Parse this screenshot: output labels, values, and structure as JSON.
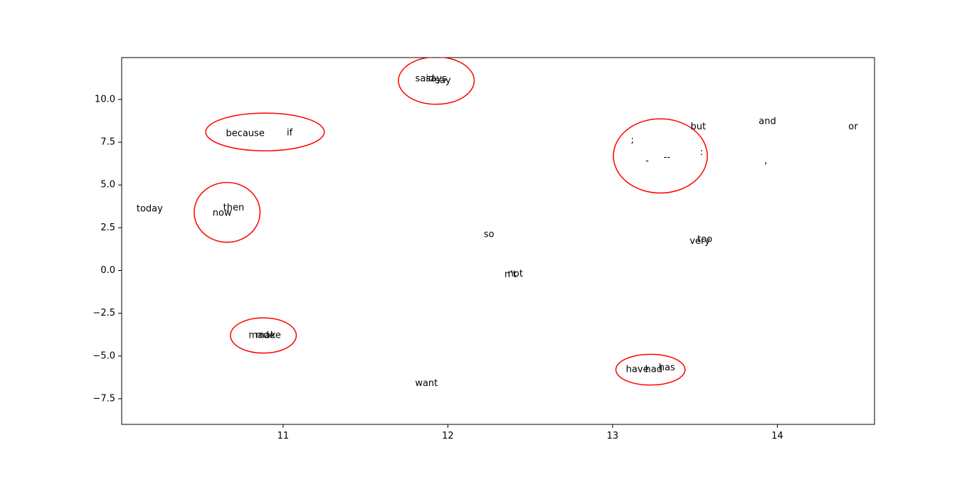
{
  "chart_data": {
    "type": "scatter",
    "title": "",
    "xlabel": "",
    "ylabel": "",
    "xlim": [
      10.02,
      14.59
    ],
    "ylim": [
      -9.0,
      12.45
    ],
    "xticks": [
      11,
      12,
      13,
      14
    ],
    "yticks": [
      -7.5,
      -5.0,
      -2.5,
      0.0,
      2.5,
      5.0,
      7.5,
      10.0
    ],
    "xtick_labels": [
      "11",
      "12",
      "13",
      "14"
    ],
    "ytick_labels": [
      "−7.5",
      "−5.0",
      "−2.5",
      "0.0",
      "2.5",
      "5.0",
      "7.5",
      "10.0"
    ],
    "grid": false,
    "points": [
      {
        "label": "said",
        "x": 11.86,
        "y": 11.2
      },
      {
        "label": "says",
        "x": 11.93,
        "y": 11.2
      },
      {
        "label": "say",
        "x": 11.97,
        "y": 11.1
      },
      {
        "label": "because",
        "x": 10.77,
        "y": 8.0
      },
      {
        "label": "if",
        "x": 11.04,
        "y": 8.05
      },
      {
        "label": "today",
        "x": 10.19,
        "y": 3.6
      },
      {
        "label": "now",
        "x": 10.63,
        "y": 3.35
      },
      {
        "label": "then",
        "x": 10.7,
        "y": 3.65
      },
      {
        "label": "so",
        "x": 12.25,
        "y": 2.1
      },
      {
        "label": "not",
        "x": 12.41,
        "y": -0.2
      },
      {
        "label": "n't",
        "x": 12.38,
        "y": -0.25
      },
      {
        "label": "make",
        "x": 10.91,
        "y": -3.8
      },
      {
        "label": "made",
        "x": 10.87,
        "y": -3.8
      },
      {
        "label": "want",
        "x": 11.87,
        "y": -6.6
      },
      {
        "label": "have",
        "x": 13.15,
        "y": -5.8
      },
      {
        "label": "had",
        "x": 13.25,
        "y": -5.8
      },
      {
        "label": "has",
        "x": 13.33,
        "y": -5.7
      },
      {
        "label": ";",
        "x": 13.12,
        "y": 7.6
      },
      {
        "label": "-",
        "x": 13.21,
        "y": 6.4
      },
      {
        "label": "--",
        "x": 13.33,
        "y": 6.6
      },
      {
        "label": ":",
        "x": 13.54,
        "y": 6.9
      },
      {
        "label": "but",
        "x": 13.52,
        "y": 8.4
      },
      {
        "label": "and",
        "x": 13.94,
        "y": 8.7
      },
      {
        "label": ",",
        "x": 13.93,
        "y": 6.4
      },
      {
        "label": "or",
        "x": 14.46,
        "y": 8.4
      },
      {
        "label": "very",
        "x": 13.53,
        "y": 1.7
      },
      {
        "label": "too",
        "x": 13.56,
        "y": 1.8
      }
    ],
    "clusters": [
      {
        "cx": 11.93,
        "cy": 11.1,
        "rx": 0.23,
        "ry": 1.38
      },
      {
        "cx": 10.89,
        "cy": 8.1,
        "rx": 0.36,
        "ry": 1.1
      },
      {
        "cx": 10.66,
        "cy": 3.4,
        "rx": 0.2,
        "ry": 1.75
      },
      {
        "cx": 10.88,
        "cy": -3.8,
        "rx": 0.2,
        "ry": 1.03
      },
      {
        "cx": 13.29,
        "cy": 6.7,
        "rx": 0.285,
        "ry": 2.17
      },
      {
        "cx": 13.23,
        "cy": -5.8,
        "rx": 0.21,
        "ry": 0.9
      }
    ],
    "cluster_color": "#ff0000"
  }
}
